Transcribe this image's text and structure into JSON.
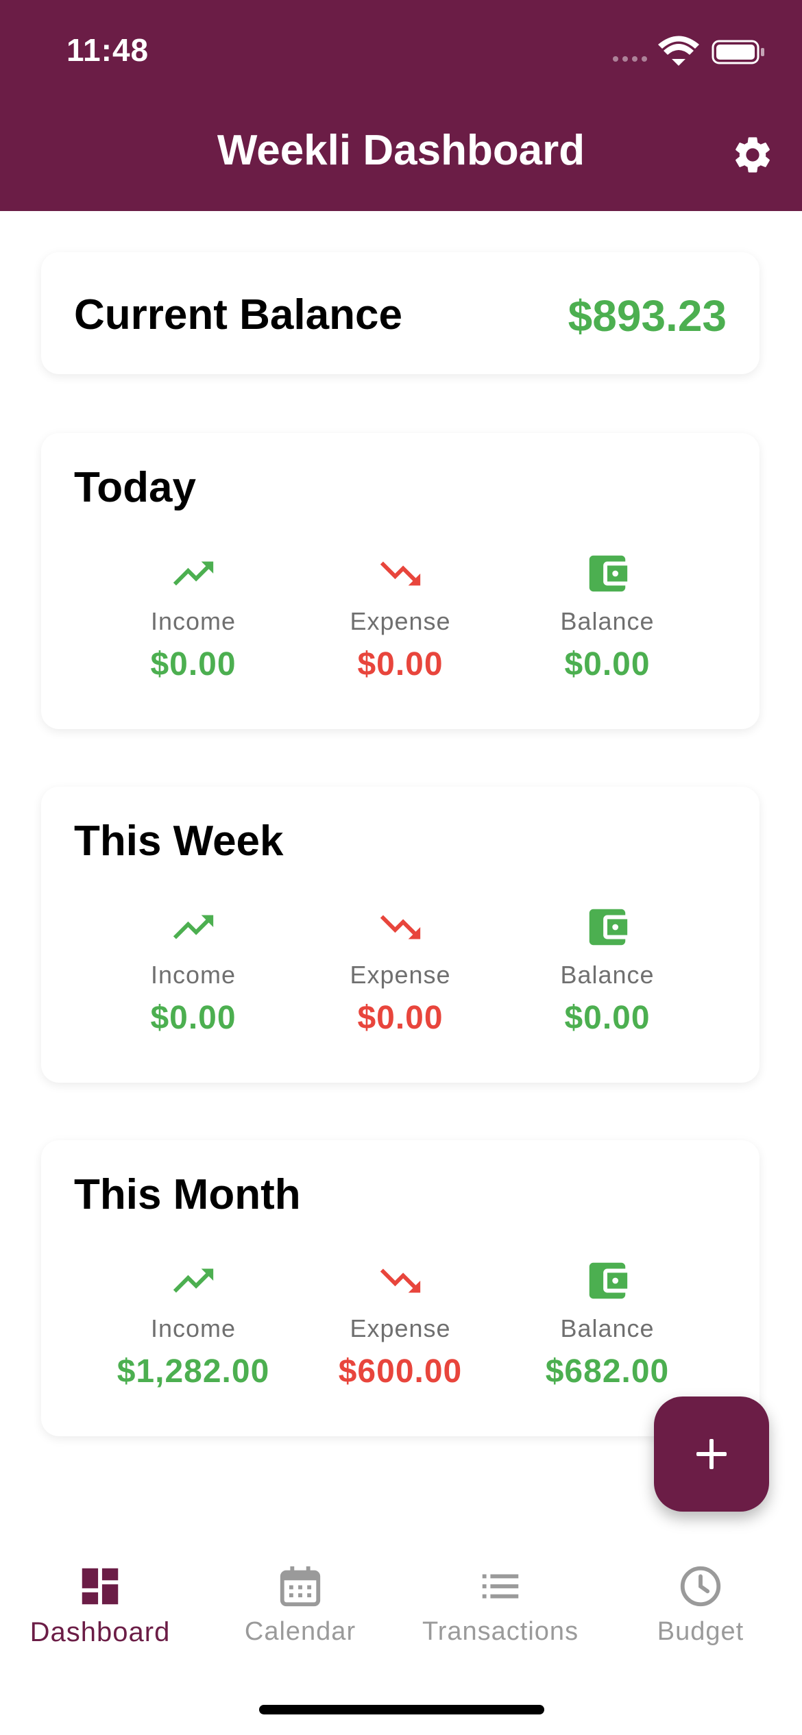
{
  "status_bar": {
    "time": "11:48"
  },
  "header": {
    "title": "Weekli Dashboard",
    "settings_icon": "gear-icon"
  },
  "current_balance": {
    "label": "Current Balance",
    "value": "$893.23"
  },
  "periods": [
    {
      "title": "Today",
      "stats": [
        {
          "label": "Income",
          "value": "$0.00",
          "icon": "trending-up-icon"
        },
        {
          "label": "Expense",
          "value": "$0.00",
          "icon": "trending-down-icon"
        },
        {
          "label": "Balance",
          "value": "$0.00",
          "icon": "wallet-icon"
        }
      ]
    },
    {
      "title": "This Week",
      "stats": [
        {
          "label": "Income",
          "value": "$0.00",
          "icon": "trending-up-icon"
        },
        {
          "label": "Expense",
          "value": "$0.00",
          "icon": "trending-down-icon"
        },
        {
          "label": "Balance",
          "value": "$0.00",
          "icon": "wallet-icon"
        }
      ]
    },
    {
      "title": "This Month",
      "stats": [
        {
          "label": "Income",
          "value": "$1,282.00",
          "icon": "trending-up-icon"
        },
        {
          "label": "Expense",
          "value": "$600.00",
          "icon": "trending-down-icon"
        },
        {
          "label": "Balance",
          "value": "$682.00",
          "icon": "wallet-icon"
        }
      ]
    }
  ],
  "fab": {
    "icon": "plus-icon"
  },
  "bottom_nav": {
    "items": [
      {
        "label": "Dashboard",
        "icon": "dashboard-icon",
        "active": true
      },
      {
        "label": "Calendar",
        "icon": "calendar-icon",
        "active": false
      },
      {
        "label": "Transactions",
        "icon": "list-icon",
        "active": false
      },
      {
        "label": "Budget",
        "icon": "clock-icon",
        "active": false
      }
    ]
  },
  "colors": {
    "primary": "#6b1d46",
    "income": "#4caf50",
    "expense": "#e8453c",
    "inactive_nav": "#9a9a9a"
  }
}
